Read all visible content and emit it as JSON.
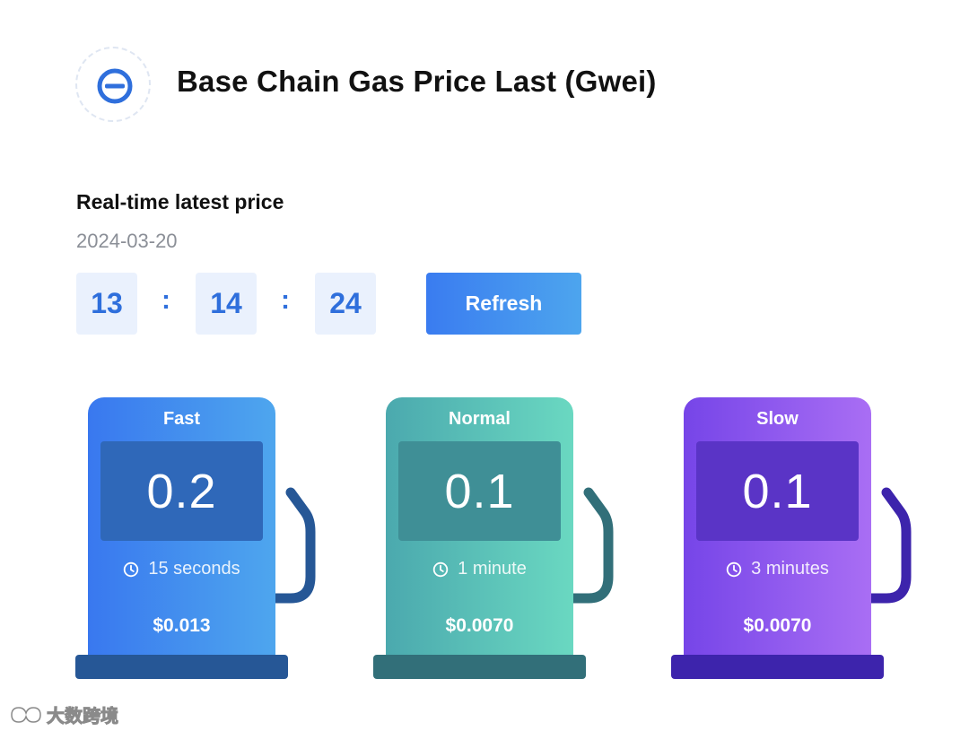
{
  "header": {
    "logo_icon": "base-chain-logo-icon",
    "title": "Base Chain Gas Price Last (Gwei)"
  },
  "realtime": {
    "section_title": "Real-time latest price",
    "date": "2024-03-20",
    "time": {
      "hours": "13",
      "minutes": "14",
      "seconds": "24",
      "separator": ":"
    },
    "refresh_label": "Refresh"
  },
  "pumps": [
    {
      "label": "Fast",
      "price": "0.2",
      "wait": "15 seconds",
      "cost": "$0.013",
      "accent": "#3978ef"
    },
    {
      "label": "Normal",
      "price": "0.1",
      "wait": "1 minute",
      "cost": "$0.0070",
      "accent": "#4ba9ae"
    },
    {
      "label": "Slow",
      "price": "0.1",
      "wait": "3 minutes",
      "cost": "$0.0070",
      "accent": "#7645e8"
    }
  ],
  "watermark": {
    "text": "大数跨境",
    "icon": "watermark-logo-icon"
  },
  "colors": {
    "primary": "#2f6fdc",
    "time_box_bg": "#eaf1fd",
    "date_text": "#8b8f97"
  }
}
